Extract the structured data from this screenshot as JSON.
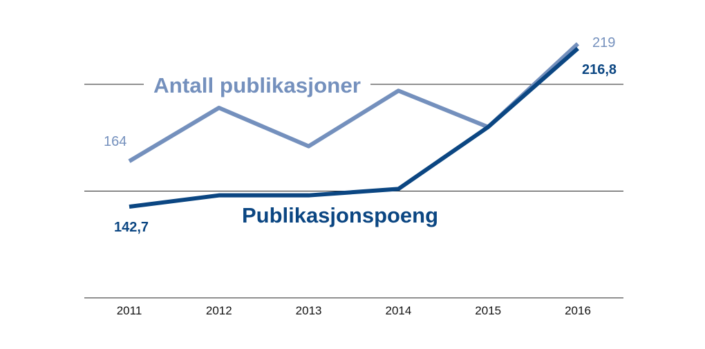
{
  "chart_data": {
    "type": "line",
    "title": "",
    "xlabel": "",
    "ylabel": "",
    "categories": [
      "2011",
      "2012",
      "2013",
      "2014",
      "2015",
      "2016"
    ],
    "ylim": [
      100,
      225
    ],
    "grid_values": [
      150,
      200
    ],
    "grid": true,
    "series": [
      {
        "name": "Antall publikasjoner",
        "color": "#7490bd",
        "values": [
          164,
          189,
          171,
          197,
          180,
          219
        ],
        "labels": {
          "first": "164",
          "last": "219"
        }
      },
      {
        "name": "Publikasjonspoeng",
        "color": "#0b4682",
        "values": [
          142.7,
          148,
          148,
          151,
          180,
          216.8
        ],
        "labels": {
          "first": "142,7",
          "last": "216,8"
        }
      }
    ]
  }
}
